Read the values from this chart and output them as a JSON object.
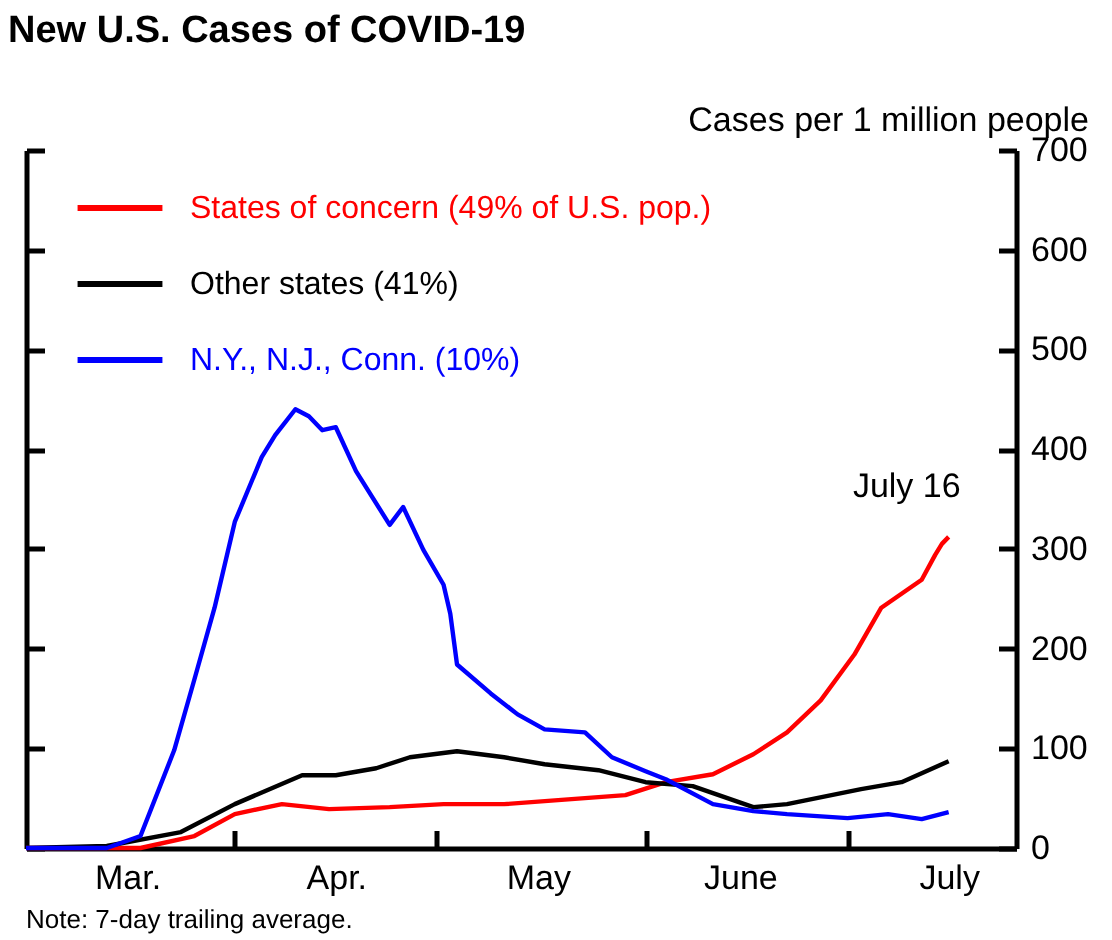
{
  "chart_data": {
    "type": "line",
    "title": "New U.S. Cases of COVID-19",
    "ylabel": "Cases per 1 million people",
    "annotations": [
      {
        "text": "July 16",
        "x": "--07-16",
        "y": 312
      },
      "Note: 7-day trailing average."
    ],
    "xlim": [
      "--03-01",
      "--07-26"
    ],
    "xticks": [
      {
        "value": "--04-01",
        "label": null
      },
      {
        "value": "--05-01",
        "label": null
      },
      {
        "value": "--06-01",
        "label": null
      },
      {
        "value": "--07-01",
        "label": null
      },
      {
        "value": "--03-16",
        "label": "Mar."
      },
      {
        "value": "--04-16",
        "label": "Apr."
      },
      {
        "value": "--05-16",
        "label": "May"
      },
      {
        "value": "--06-15",
        "label": "June"
      },
      {
        "value": "--07-16",
        "label": "July"
      }
    ],
    "ylim": [
      0,
      700
    ],
    "yticks": [
      0,
      100,
      200,
      300,
      400,
      500,
      600,
      700
    ],
    "grid": false,
    "legend": "top left",
    "line_style": "solid",
    "series": [
      {
        "name": "States of concern (49% of U.S. pop.)",
        "color": "#ff0000",
        "x": [
          "--03-01",
          "--03-18",
          "--03-26",
          "--04-01",
          "--04-08",
          "--04-15",
          "--04-24",
          "--05-02",
          "--05-11",
          "--05-21",
          "--05-29",
          "--06-04",
          "--06-11",
          "--06-17",
          "--06-22",
          "--06-27",
          "--07-02",
          "--07-06",
          "--07-12",
          "--07-14",
          "--07-15",
          "--07-16"
        ],
        "values": [
          0,
          0,
          12,
          34,
          44,
          39,
          41,
          44,
          44,
          49,
          53,
          66,
          74,
          94,
          116,
          148,
          194,
          241,
          269,
          294,
          305,
          312
        ]
      },
      {
        "name": "Other states (41%)",
        "color": "#000000",
        "x": [
          "--03-01",
          "--03-13",
          "--03-24",
          "--04-01",
          "--04-11",
          "--04-16",
          "--04-22",
          "--04-27",
          "--05-04",
          "--05-11",
          "--05-17",
          "--05-25",
          "--06-01",
          "--06-08",
          "--06-17",
          "--06-22",
          "--07-03",
          "--07-09",
          "--07-16"
        ],
        "values": [
          0,
          2,
          16,
          44,
          73,
          73,
          80,
          91,
          97,
          91,
          84,
          78,
          66,
          62,
          41,
          44,
          59,
          66,
          87
        ]
      },
      {
        "name": "N.Y., N.J., Conn. (10%)",
        "color": "#0000ff",
        "x": [
          "--03-01",
          "--03-13",
          "--03-18",
          "--03-23",
          "--03-26",
          "--03-29",
          "--04-01",
          "--04-05",
          "--04-07",
          "--04-10",
          "--04-12",
          "--04-14",
          "--04-16",
          "--04-19",
          "--04-24",
          "--04-26",
          "--04-29",
          "--05-02",
          "--05-03",
          "--05-04",
          "--05-09",
          "--05-13",
          "--05-17",
          "--05-23",
          "--05-27",
          "--06-01",
          "--06-04",
          "--06-11",
          "--06-17",
          "--06-22",
          "--07-01",
          "--07-07",
          "--07-12",
          "--07-16"
        ],
        "values": [
          0,
          0,
          12,
          98,
          169,
          241,
          327,
          392,
          414,
          440,
          433,
          419,
          422,
          378,
          324,
          342,
          299,
          264,
          235,
          184,
          155,
          134,
          119,
          116,
          91,
          77,
          69,
          44,
          37,
          34,
          30,
          34,
          29,
          36
        ]
      }
    ]
  }
}
